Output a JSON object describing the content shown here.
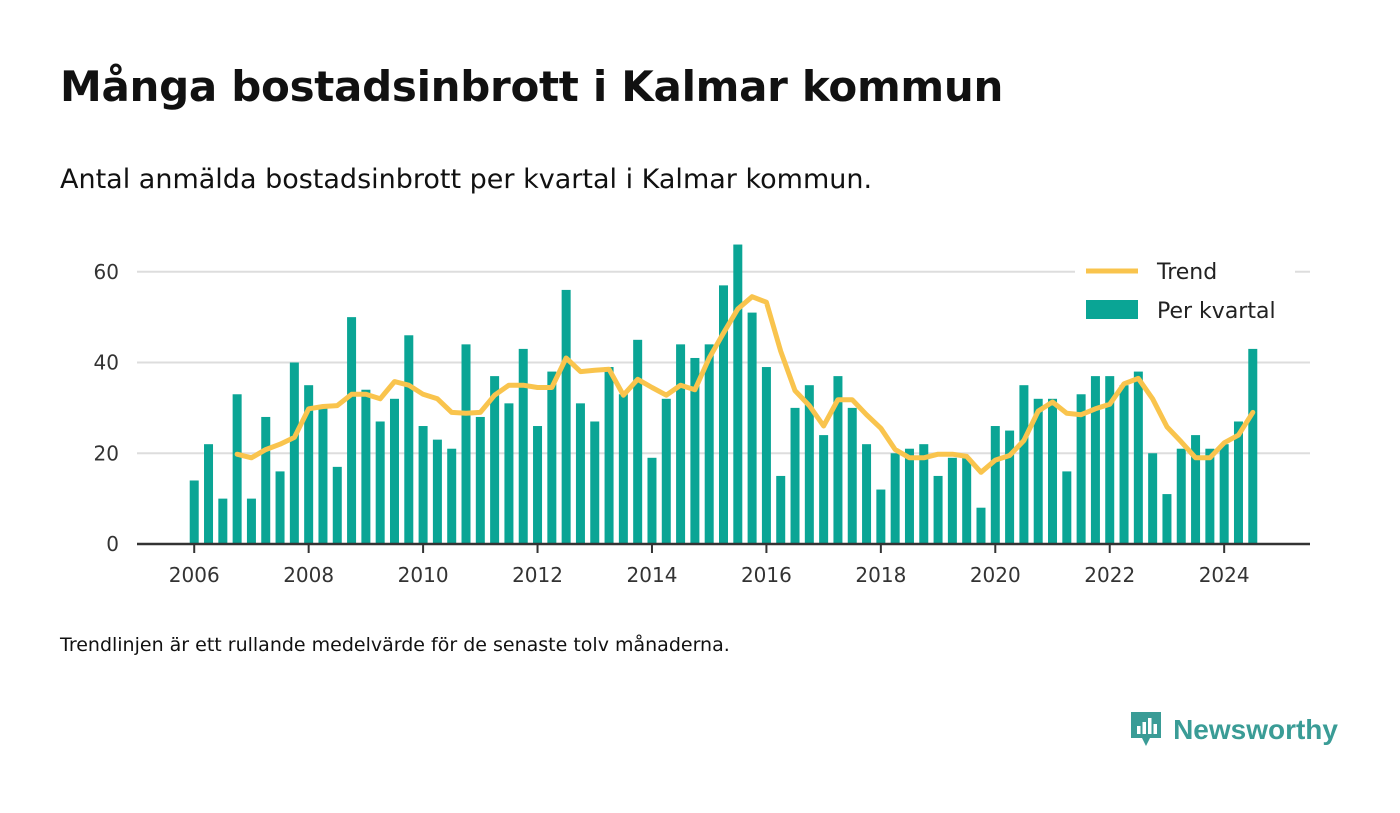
{
  "header": {
    "title": "Många bostadsinbrott i Kalmar kommun",
    "subtitle": "Antal anmälda bostadsinbrott per kvartal i Kalmar kommun."
  },
  "footer": {
    "note": "Trendlinjen är ett rullande medelvärde för de senaste tolv månaderna.",
    "brand": "Newsworthy"
  },
  "colors": {
    "bars": "#0aa595",
    "trend": "#f9c44d",
    "grid": "#dddddd",
    "axis": "#333333",
    "brand": "#3a9c96"
  },
  "chart_data": {
    "type": "bar",
    "title": "Många bostadsinbrott i Kalmar kommun",
    "subtitle": "Antal anmälda bostadsinbrott per kvartal i Kalmar kommun.",
    "xlabel": "",
    "ylabel": "",
    "xlim": [
      2005.0,
      2025.5
    ],
    "ylim": [
      0,
      67
    ],
    "xticks": [
      "2006",
      "2008",
      "2010",
      "2012",
      "2014",
      "2016",
      "2018",
      "2020",
      "2022",
      "2024"
    ],
    "yticks": [
      "0",
      "20",
      "40",
      "60"
    ],
    "grid": "horizontal",
    "legend": {
      "position": "top-right",
      "entries": [
        "Trend",
        "Per kvartal"
      ]
    },
    "series": [
      {
        "name": "Per kvartal",
        "type": "bar",
        "x": [
          "2006 Q1",
          "2006 Q2",
          "2006 Q3",
          "2006 Q4",
          "2007 Q1",
          "2007 Q2",
          "2007 Q3",
          "2007 Q4",
          "2008 Q1",
          "2008 Q2",
          "2008 Q3",
          "2008 Q4",
          "2009 Q1",
          "2009 Q2",
          "2009 Q3",
          "2009 Q4",
          "2010 Q1",
          "2010 Q2",
          "2010 Q3",
          "2010 Q4",
          "2011 Q1",
          "2011 Q2",
          "2011 Q3",
          "2011 Q4",
          "2012 Q1",
          "2012 Q2",
          "2012 Q3",
          "2012 Q4",
          "2013 Q1",
          "2013 Q2",
          "2013 Q3",
          "2013 Q4",
          "2014 Q1",
          "2014 Q2",
          "2014 Q3",
          "2014 Q4",
          "2015 Q1",
          "2015 Q2",
          "2015 Q3",
          "2015 Q4",
          "2016 Q1",
          "2016 Q2",
          "2016 Q3",
          "2016 Q4",
          "2017 Q1",
          "2017 Q2",
          "2017 Q3",
          "2017 Q4",
          "2018 Q1",
          "2018 Q2",
          "2018 Q3",
          "2018 Q4",
          "2019 Q1",
          "2019 Q2",
          "2019 Q3",
          "2019 Q4",
          "2020 Q1",
          "2020 Q2",
          "2020 Q3",
          "2020 Q4",
          "2021 Q1",
          "2021 Q2",
          "2021 Q3",
          "2021 Q4",
          "2022 Q1",
          "2022 Q2",
          "2022 Q3",
          "2022 Q4",
          "2023 Q1",
          "2023 Q2",
          "2023 Q3",
          "2023 Q4",
          "2024 Q1",
          "2024 Q2",
          "2024 Q3"
        ],
        "values": [
          14,
          22,
          10,
          33,
          10,
          28,
          16,
          40,
          35,
          30,
          17,
          50,
          34,
          27,
          32,
          46,
          26,
          23,
          21,
          44,
          28,
          37,
          31,
          43,
          26,
          38,
          56,
          31,
          27,
          39,
          33,
          45,
          19,
          32,
          44,
          41,
          44,
          57,
          66,
          51,
          39,
          15,
          30,
          35,
          24,
          37,
          30,
          22,
          12,
          20,
          21,
          22,
          15,
          19,
          19,
          8,
          26,
          25,
          35,
          32,
          32,
          16,
          33,
          37,
          37,
          35,
          38,
          20,
          11,
          21,
          24,
          21,
          22,
          27,
          43
        ]
      },
      {
        "name": "Trend",
        "type": "line",
        "x": [
          "2006 Q4",
          "2007 Q1",
          "2007 Q2",
          "2007 Q3",
          "2007 Q4",
          "2008 Q1",
          "2008 Q2",
          "2008 Q3",
          "2008 Q4",
          "2009 Q1",
          "2009 Q2",
          "2009 Q3",
          "2009 Q4",
          "2010 Q1",
          "2010 Q2",
          "2010 Q3",
          "2010 Q4",
          "2011 Q1",
          "2011 Q2",
          "2011 Q3",
          "2011 Q4",
          "2012 Q1",
          "2012 Q2",
          "2012 Q3",
          "2012 Q4",
          "2013 Q1",
          "2013 Q2",
          "2013 Q3",
          "2013 Q4",
          "2014 Q1",
          "2014 Q2",
          "2014 Q3",
          "2014 Q4",
          "2015 Q1",
          "2015 Q2",
          "2015 Q3",
          "2015 Q4",
          "2016 Q1",
          "2016 Q2",
          "2016 Q3",
          "2016 Q4",
          "2017 Q1",
          "2017 Q2",
          "2017 Q3",
          "2017 Q4",
          "2018 Q1",
          "2018 Q2",
          "2018 Q3",
          "2018 Q4",
          "2019 Q1",
          "2019 Q2",
          "2019 Q3",
          "2019 Q4",
          "2020 Q1",
          "2020 Q2",
          "2020 Q3",
          "2020 Q4",
          "2021 Q1",
          "2021 Q2",
          "2021 Q3",
          "2021 Q4",
          "2022 Q1",
          "2022 Q2",
          "2022 Q3",
          "2022 Q4",
          "2023 Q1",
          "2023 Q2",
          "2023 Q3",
          "2023 Q4",
          "2024 Q1",
          "2024 Q2",
          "2024 Q3"
        ],
        "values": [
          19.8,
          19.0,
          20.8,
          22.0,
          23.5,
          29.8,
          30.3,
          30.5,
          33.0,
          33.0,
          32.0,
          35.8,
          35.0,
          33.0,
          32.0,
          29.0,
          28.8,
          29.0,
          32.8,
          35.0,
          35.0,
          34.5,
          34.5,
          41.0,
          38.0,
          38.3,
          38.5,
          32.8,
          36.3,
          34.5,
          32.8,
          35.0,
          34.0,
          41.0,
          46.5,
          51.8,
          54.5,
          53.3,
          42.5,
          33.8,
          30.5,
          26.0,
          31.8,
          31.8,
          28.5,
          25.5,
          20.8,
          19.0,
          19.0,
          19.8,
          19.8,
          19.3,
          15.8,
          18.5,
          19.5,
          22.8,
          29.3,
          31.3,
          28.8,
          28.5,
          29.8,
          30.8,
          35.3,
          36.5,
          32.0,
          25.8,
          22.5,
          19.0,
          19.0,
          22.3,
          24.0,
          29.0
        ]
      }
    ]
  }
}
